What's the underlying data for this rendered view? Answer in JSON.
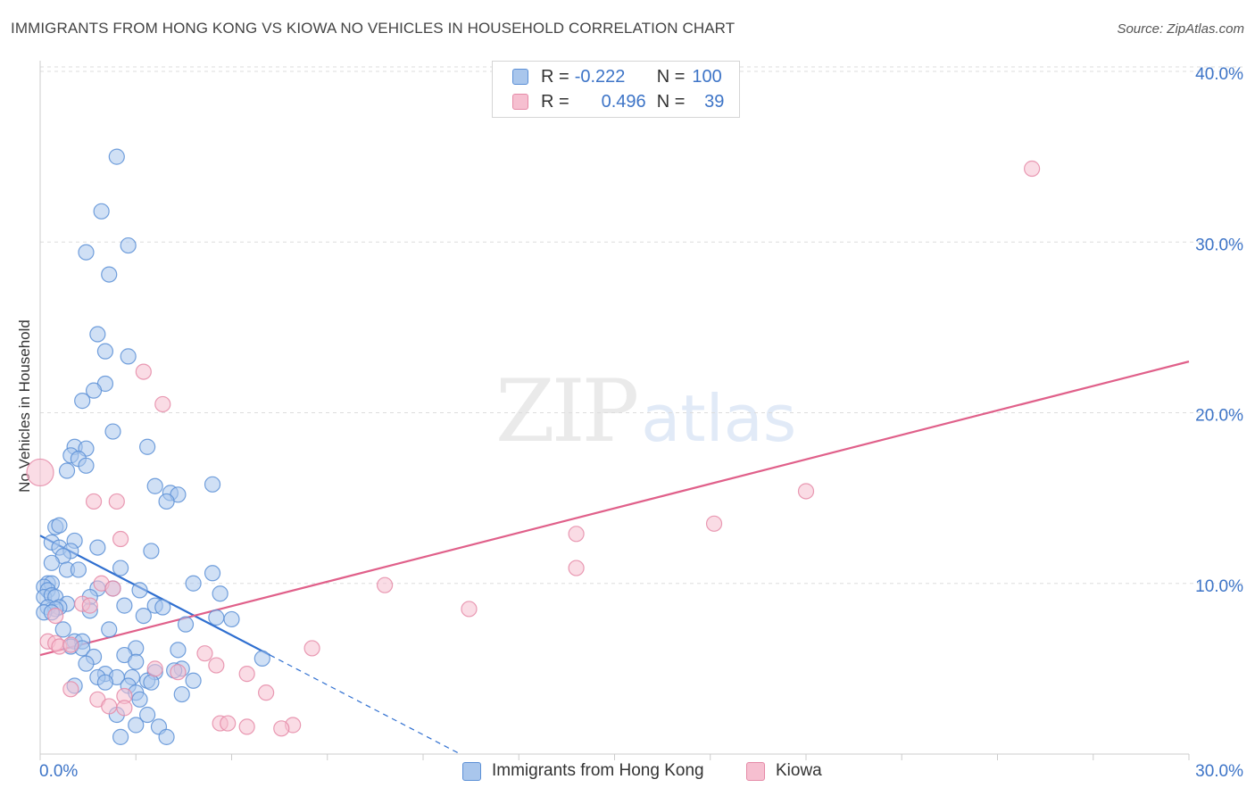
{
  "header": {
    "title": "IMMIGRANTS FROM HONG KONG VS KIOWA NO VEHICLES IN HOUSEHOLD CORRELATION CHART",
    "source": "Source: ZipAtlas.com"
  },
  "watermark": {
    "part1": "ZIP",
    "part2": "atlas"
  },
  "legend": {
    "r_label": "R =",
    "n_label": "N =",
    "rows": [
      {
        "r": "-0.222",
        "n": "100"
      },
      {
        "r": "0.496",
        "n": "39"
      }
    ]
  },
  "colors": {
    "blue_fill": "#a9c6ec",
    "blue_stroke": "#5b8fd6",
    "blue_line": "#2f6fd0",
    "pink_fill": "#f6bfd0",
    "pink_stroke": "#e58aa7",
    "pink_line": "#e0608a",
    "grid": "#dddddd",
    "tick_text": "#3d74c7"
  },
  "chart_data": {
    "type": "scatter",
    "title": "IMMIGRANTS FROM HONG KONG VS KIOWA NO VEHICLES IN HOUSEHOLD CORRELATION CHART",
    "xlabel": "",
    "ylabel": "No Vehicles in Household",
    "xlim": [
      0,
      30
    ],
    "ylim": [
      0,
      40
    ],
    "x_tick_labels": [
      "0.0%",
      "30.0%"
    ],
    "y_ticks": [
      10,
      20,
      30,
      40
    ],
    "y_tick_labels": [
      "10.0%",
      "20.0%",
      "30.0%",
      "40.0%"
    ],
    "grid": true,
    "legend_position": "top-center",
    "series": [
      {
        "name": "Immigrants from Hong Kong",
        "R": -0.222,
        "N": 100,
        "trend": {
          "x0": 0.0,
          "y0": 12.8,
          "x1": 6.0,
          "y1": 5.8,
          "dashed_to_x": 11.0
        },
        "points": [
          [
            2.0,
            35.0
          ],
          [
            1.6,
            31.8
          ],
          [
            2.3,
            29.8
          ],
          [
            1.2,
            29.4
          ],
          [
            1.8,
            28.1
          ],
          [
            1.5,
            24.6
          ],
          [
            1.7,
            23.6
          ],
          [
            2.3,
            23.3
          ],
          [
            1.7,
            21.7
          ],
          [
            1.4,
            21.3
          ],
          [
            1.1,
            20.7
          ],
          [
            1.9,
            18.9
          ],
          [
            0.9,
            18.0
          ],
          [
            1.2,
            17.9
          ],
          [
            2.8,
            18.0
          ],
          [
            0.8,
            17.5
          ],
          [
            1.0,
            17.3
          ],
          [
            1.2,
            16.9
          ],
          [
            0.7,
            16.6
          ],
          [
            3.0,
            15.7
          ],
          [
            4.5,
            15.8
          ],
          [
            3.4,
            15.3
          ],
          [
            3.6,
            15.2
          ],
          [
            3.3,
            14.8
          ],
          [
            0.4,
            13.3
          ],
          [
            0.5,
            13.4
          ],
          [
            0.3,
            12.4
          ],
          [
            0.9,
            12.5
          ],
          [
            1.5,
            12.1
          ],
          [
            0.5,
            12.1
          ],
          [
            0.8,
            11.9
          ],
          [
            2.9,
            11.9
          ],
          [
            0.6,
            11.6
          ],
          [
            0.3,
            11.2
          ],
          [
            0.7,
            10.8
          ],
          [
            1.0,
            10.8
          ],
          [
            2.1,
            10.9
          ],
          [
            4.5,
            10.6
          ],
          [
            4.0,
            10.0
          ],
          [
            0.2,
            10.0
          ],
          [
            0.3,
            10.0
          ],
          [
            0.1,
            9.8
          ],
          [
            0.2,
            9.6
          ],
          [
            1.9,
            9.7
          ],
          [
            1.5,
            9.7
          ],
          [
            2.6,
            9.6
          ],
          [
            4.7,
            9.4
          ],
          [
            1.3,
            9.2
          ],
          [
            0.1,
            9.2
          ],
          [
            0.3,
            9.3
          ],
          [
            0.4,
            9.2
          ],
          [
            2.2,
            8.7
          ],
          [
            3.0,
            8.7
          ],
          [
            3.2,
            8.6
          ],
          [
            0.7,
            8.8
          ],
          [
            0.5,
            8.6
          ],
          [
            0.2,
            8.6
          ],
          [
            0.4,
            8.5
          ],
          [
            0.1,
            8.3
          ],
          [
            0.3,
            8.3
          ],
          [
            1.3,
            8.4
          ],
          [
            2.7,
            8.1
          ],
          [
            4.6,
            8.0
          ],
          [
            5.0,
            7.9
          ],
          [
            3.8,
            7.6
          ],
          [
            1.8,
            7.3
          ],
          [
            0.6,
            7.3
          ],
          [
            0.9,
            6.6
          ],
          [
            1.1,
            6.6
          ],
          [
            0.8,
            6.3
          ],
          [
            1.1,
            6.2
          ],
          [
            2.5,
            6.2
          ],
          [
            3.6,
            6.1
          ],
          [
            1.4,
            5.7
          ],
          [
            2.2,
            5.8
          ],
          [
            5.8,
            5.6
          ],
          [
            2.5,
            5.4
          ],
          [
            1.2,
            5.3
          ],
          [
            3.7,
            5.0
          ],
          [
            3.5,
            4.9
          ],
          [
            3.0,
            4.8
          ],
          [
            1.7,
            4.7
          ],
          [
            1.5,
            4.5
          ],
          [
            2.0,
            4.5
          ],
          [
            2.4,
            4.5
          ],
          [
            2.8,
            4.3
          ],
          [
            2.9,
            4.2
          ],
          [
            4.0,
            4.3
          ],
          [
            1.7,
            4.2
          ],
          [
            2.3,
            4.0
          ],
          [
            0.9,
            4.0
          ],
          [
            2.5,
            3.6
          ],
          [
            2.6,
            3.2
          ],
          [
            3.7,
            3.5
          ],
          [
            2.0,
            2.3
          ],
          [
            2.8,
            2.3
          ],
          [
            2.5,
            1.7
          ],
          [
            3.1,
            1.6
          ],
          [
            2.1,
            1.0
          ],
          [
            3.3,
            1.0
          ]
        ]
      },
      {
        "name": "Kiowa",
        "R": 0.496,
        "N": 39,
        "trend": {
          "x0": 0.0,
          "y0": 5.8,
          "x1": 30.0,
          "y1": 23.0
        },
        "points": [
          [
            25.9,
            34.3
          ],
          [
            2.7,
            22.4
          ],
          [
            3.2,
            20.5
          ],
          [
            0.0,
            16.5
          ],
          [
            20.0,
            15.4
          ],
          [
            1.4,
            14.8
          ],
          [
            2.0,
            14.8
          ],
          [
            17.6,
            13.5
          ],
          [
            14.0,
            12.9
          ],
          [
            2.1,
            12.6
          ],
          [
            14.0,
            10.9
          ],
          [
            9.0,
            9.9
          ],
          [
            1.6,
            10.0
          ],
          [
            1.9,
            9.7
          ],
          [
            11.2,
            8.5
          ],
          [
            1.1,
            8.8
          ],
          [
            1.3,
            8.7
          ],
          [
            0.4,
            8.1
          ],
          [
            0.2,
            6.6
          ],
          [
            0.4,
            6.5
          ],
          [
            0.5,
            6.3
          ],
          [
            0.8,
            6.4
          ],
          [
            7.1,
            6.2
          ],
          [
            4.3,
            5.9
          ],
          [
            4.6,
            5.2
          ],
          [
            3.0,
            5.0
          ],
          [
            3.6,
            4.8
          ],
          [
            5.4,
            4.7
          ],
          [
            0.8,
            3.8
          ],
          [
            5.9,
            3.6
          ],
          [
            2.2,
            3.4
          ],
          [
            1.5,
            3.2
          ],
          [
            1.8,
            2.8
          ],
          [
            2.2,
            2.7
          ],
          [
            4.7,
            1.8
          ],
          [
            4.9,
            1.8
          ],
          [
            5.4,
            1.6
          ],
          [
            6.6,
            1.7
          ],
          [
            6.3,
            1.5
          ]
        ]
      }
    ]
  }
}
